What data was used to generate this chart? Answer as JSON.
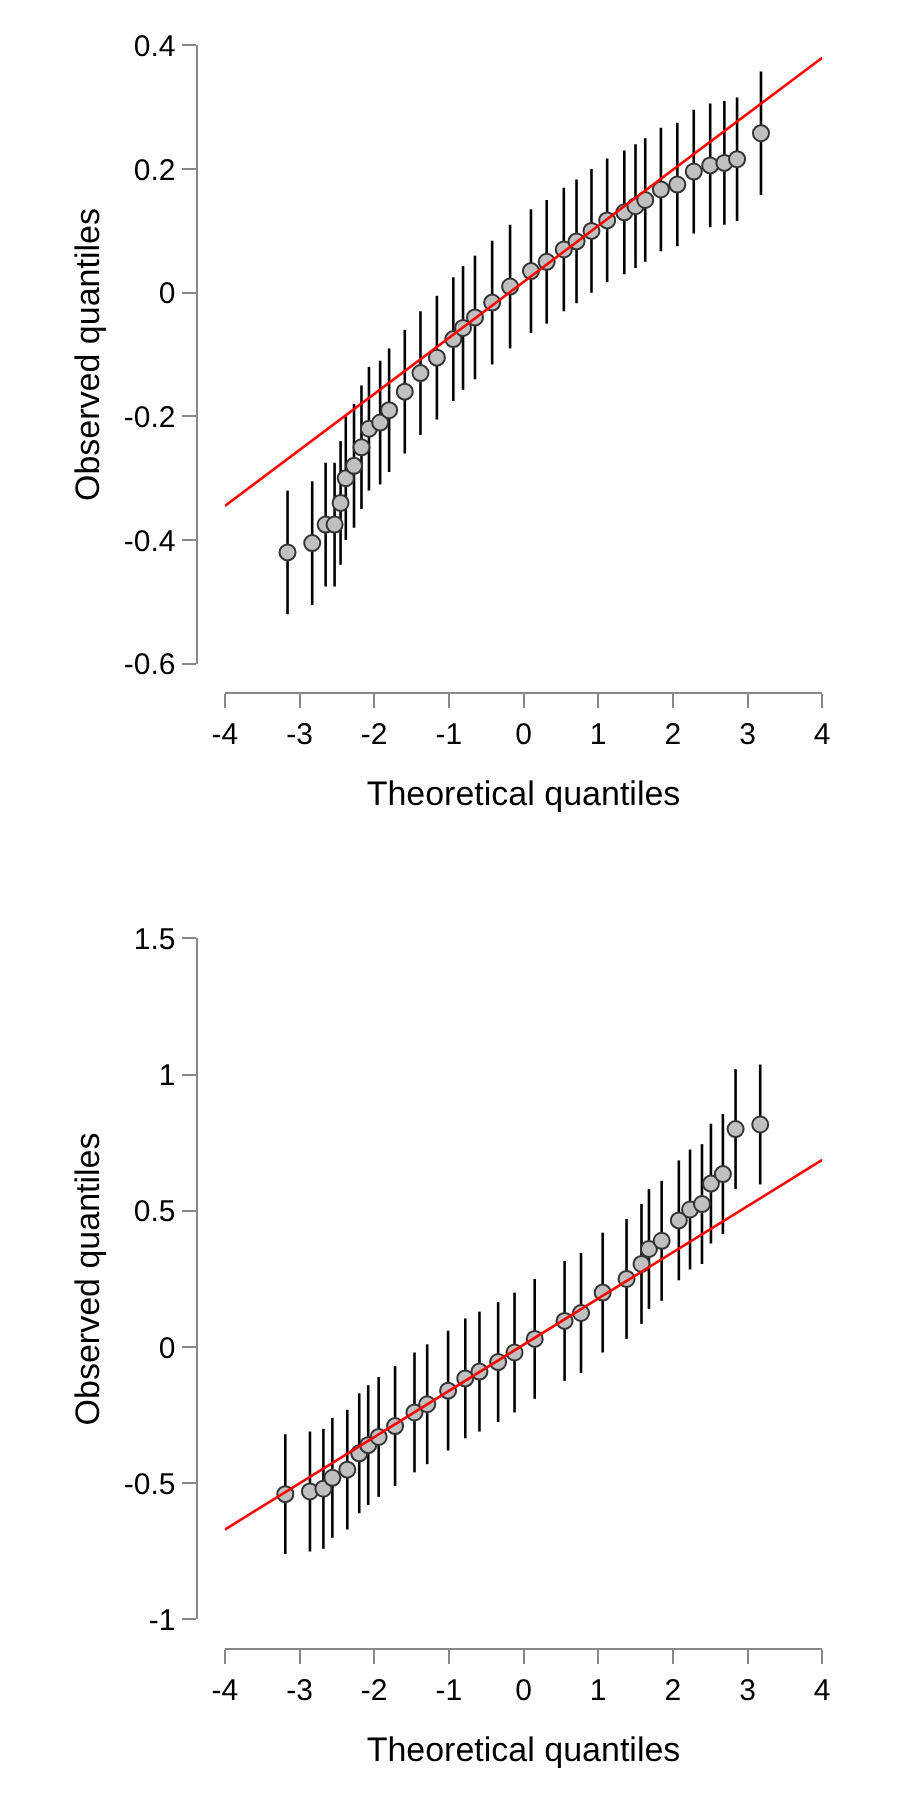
{
  "chart_data": [
    {
      "type": "scatter",
      "xlabel": "Theoretical quantiles",
      "ylabel": "Observed quantiles",
      "xlim": [
        -4,
        4
      ],
      "xticks": [
        -4,
        -3,
        -2,
        -1,
        0,
        1,
        2,
        3,
        4
      ],
      "ylim": [
        -0.6,
        0.4
      ],
      "yticks": [
        -0.6,
        -0.4,
        -0.2,
        0,
        0.2,
        0.4
      ],
      "grid": false,
      "legend": false,
      "series": [
        {
          "marker": "circle",
          "color": "#c0c0c0",
          "x": [
            -3.16,
            -2.83,
            -2.65,
            -2.53,
            -2.45,
            -2.38,
            -2.27,
            -2.17,
            -2.07,
            -1.92,
            -1.8,
            -1.59,
            -1.38,
            -1.16,
            -0.94,
            -0.81,
            -0.65,
            -0.42,
            -0.18,
            0.1,
            0.31,
            0.54,
            0.71,
            0.91,
            1.12,
            1.35,
            1.5,
            1.63,
            1.84,
            2.06,
            2.28,
            2.5,
            2.69,
            2.86,
            3.18
          ],
          "values": [
            -0.42,
            -0.405,
            -0.375,
            -0.375,
            -0.34,
            -0.3,
            -0.28,
            -0.25,
            -0.22,
            -0.21,
            -0.19,
            -0.16,
            -0.13,
            -0.105,
            -0.075,
            -0.057,
            -0.04,
            -0.016,
            0.01,
            0.035,
            0.05,
            0.07,
            0.083,
            0.1,
            0.117,
            0.13,
            0.14,
            0.15,
            0.167,
            0.175,
            0.196,
            0.206,
            0.21,
            0.216,
            0.258
          ],
          "errors": [
            0.1,
            0.1,
            0.1,
            0.1,
            0.1,
            0.1,
            0.1,
            0.1,
            0.1,
            0.1,
            0.1,
            0.1,
            0.1,
            0.1,
            0.1,
            0.1,
            0.1,
            0.1,
            0.1,
            0.1,
            0.1,
            0.1,
            0.1,
            0.1,
            0.1,
            0.1,
            0.1,
            0.1,
            0.1,
            0.1,
            0.1,
            0.1,
            0.1,
            0.1,
            0.1
          ]
        },
        {
          "type": "line",
          "color": "#ff0000",
          "x": [
            -4,
            4
          ],
          "values": [
            -0.345,
            0.38
          ]
        }
      ]
    },
    {
      "type": "scatter",
      "xlabel": "Theoretical quantiles",
      "ylabel": "Observed quantiles",
      "xlim": [
        -4,
        4
      ],
      "xticks": [
        -4,
        -3,
        -2,
        -1,
        0,
        1,
        2,
        3,
        4
      ],
      "ylim": [
        -1,
        1.5
      ],
      "yticks": [
        -1,
        -0.5,
        0,
        0.5,
        1,
        1.5
      ],
      "grid": false,
      "legend": false,
      "series": [
        {
          "marker": "circle",
          "color": "#c0c0c0",
          "x": [
            -3.19,
            -2.86,
            -2.68,
            -2.56,
            -2.36,
            -2.2,
            -2.08,
            -1.94,
            -1.72,
            -1.46,
            -1.29,
            -1.01,
            -0.78,
            -0.59,
            -0.34,
            -0.12,
            0.15,
            0.55,
            0.77,
            1.06,
            1.38,
            1.58,
            1.68,
            1.85,
            2.08,
            2.23,
            2.39,
            2.51,
            2.67,
            2.84,
            3.17
          ],
          "values": [
            -0.54,
            -0.53,
            -0.52,
            -0.48,
            -0.45,
            -0.39,
            -0.36,
            -0.33,
            -0.29,
            -0.24,
            -0.21,
            -0.16,
            -0.115,
            -0.09,
            -0.055,
            -0.02,
            0.03,
            0.096,
            0.125,
            0.2,
            0.25,
            0.305,
            0.36,
            0.39,
            0.465,
            0.505,
            0.525,
            0.6,
            0.635,
            0.8,
            0.817
          ],
          "errors": [
            0.22,
            0.22,
            0.22,
            0.22,
            0.22,
            0.22,
            0.22,
            0.22,
            0.22,
            0.22,
            0.22,
            0.22,
            0.22,
            0.22,
            0.22,
            0.22,
            0.22,
            0.22,
            0.22,
            0.22,
            0.22,
            0.22,
            0.22,
            0.22,
            0.22,
            0.22,
            0.22,
            0.22,
            0.22,
            0.22,
            0.22
          ]
        },
        {
          "type": "line",
          "color": "#ff0000",
          "x": [
            -4,
            4
          ],
          "values": [
            -0.67,
            0.687
          ]
        }
      ]
    }
  ]
}
